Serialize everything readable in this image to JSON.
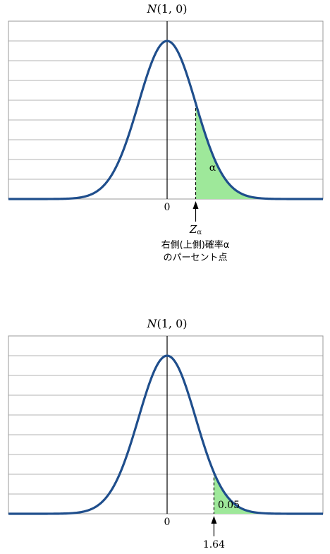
{
  "chart_data": [
    {
      "type": "line",
      "title": "N(1, 0)",
      "title_parts": {
        "italic": "N",
        "rest": "(1, 0)"
      },
      "distribution": "standard normal density",
      "x_tick_label": "0",
      "grid": true,
      "shaded_region": {
        "side": "right",
        "x_from": 1.0,
        "label": "α"
      },
      "marker": {
        "label_main": "Z",
        "label_sub": "α"
      },
      "caption_lines": [
        "右側(上側)確率α",
        "のパーセント点"
      ]
    },
    {
      "type": "line",
      "title": "N(1, 0)",
      "title_parts": {
        "italic": "N",
        "rest": "(1, 0)"
      },
      "distribution": "standard normal density",
      "x_tick_label": "0",
      "grid": true,
      "shaded_region": {
        "side": "right",
        "x_from": 1.64,
        "label": "0.05"
      },
      "marker": {
        "label_main": "1.64",
        "label_sub": ""
      },
      "caption_lines": []
    }
  ],
  "colors": {
    "curve": "#1f4e8c",
    "fill": "#9ee89a",
    "grid": "#9a9a9a",
    "axis": "#000000"
  }
}
